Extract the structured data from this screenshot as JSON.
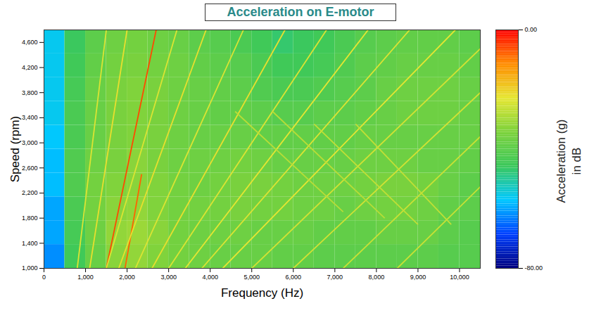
{
  "chart_data": {
    "type": "heatmap",
    "title": "Acceleration on E-motor",
    "x_label": "Frequency (Hz)",
    "y_label": "Speed (rpm)",
    "xlim": [
      0,
      10500
    ],
    "xticks": [
      0,
      1000,
      2000,
      3000,
      4000,
      5000,
      6000,
      7000,
      8000,
      9000,
      10000
    ],
    "ylim": [
      1000,
      4800
    ],
    "yticks": [
      1000,
      1400,
      1800,
      2200,
      2600,
      3000,
      3400,
      3800,
      4200,
      4600
    ],
    "x_bins": [
      0,
      500,
      1000,
      1500,
      2000,
      2500,
      3000,
      3500,
      4000,
      4500,
      5000,
      5500,
      6000,
      6500,
      7000,
      7500,
      8000,
      8500,
      9000,
      9500,
      10000,
      10500
    ],
    "y_bins": [
      1000,
      1380,
      1760,
      2140,
      2520,
      2900,
      3280,
      3660,
      4040,
      4420,
      4800
    ],
    "cells": [
      [
        -62,
        -45,
        -38,
        -33,
        -32,
        -34,
        -36,
        -37,
        -38,
        -38,
        -38,
        -39,
        -39,
        -40,
        -40,
        -40,
        -40,
        -40,
        -40,
        -41,
        -41
      ],
      [
        -60,
        -44,
        -37,
        -32,
        -31,
        -33,
        -36,
        -37,
        -37,
        -37,
        -38,
        -38,
        -38,
        -39,
        -39,
        -39,
        -38,
        -38,
        -38,
        -40,
        -41
      ],
      [
        -60,
        -43,
        -36,
        -33,
        -32,
        -34,
        -36,
        -36,
        -36,
        -35,
        -36,
        -36,
        -37,
        -37,
        -38,
        -37,
        -36,
        -36,
        -37,
        -39,
        -40
      ],
      [
        -58,
        -42,
        -36,
        -34,
        -33,
        -34,
        -36,
        -37,
        -36,
        -35,
        -35,
        -36,
        -37,
        -37,
        -37,
        -36,
        -35,
        -35,
        -36,
        -38,
        -40
      ],
      [
        -58,
        -42,
        -37,
        -35,
        -33,
        -35,
        -37,
        -37,
        -37,
        -36,
        -37,
        -38,
        -38,
        -38,
        -38,
        -37,
        -37,
        -37,
        -38,
        -38,
        -39
      ],
      [
        -57,
        -43,
        -38,
        -35,
        -34,
        -35,
        -37,
        -38,
        -38,
        -38,
        -39,
        -39,
        -39,
        -39,
        -39,
        -38,
        -38,
        -38,
        -38,
        -38,
        -38
      ],
      [
        -56,
        -43,
        -38,
        -35,
        -34,
        -35,
        -37,
        -38,
        -39,
        -39,
        -40,
        -41,
        -41,
        -40,
        -40,
        -39,
        -38,
        -37,
        -37,
        -37,
        -38
      ],
      [
        -56,
        -44,
        -38,
        -35,
        -34,
        -35,
        -37,
        -38,
        -39,
        -40,
        -42,
        -43,
        -43,
        -42,
        -41,
        -40,
        -38,
        -37,
        -37,
        -37,
        -38
      ],
      [
        -56,
        -45,
        -39,
        -36,
        -35,
        -36,
        -37,
        -39,
        -40,
        -41,
        -43,
        -45,
        -45,
        -44,
        -42,
        -40,
        -39,
        -38,
        -38,
        -38,
        -39
      ],
      [
        -56,
        -46,
        -40,
        -37,
        -36,
        -37,
        -38,
        -40,
        -41,
        -43,
        -45,
        -47,
        -46,
        -45,
        -43,
        -41,
        -40,
        -39,
        -39,
        -39,
        -40
      ]
    ],
    "lines": [
      {
        "x": [
          1500,
          2700
        ],
        "y": [
          1000,
          4800
        ],
        "level": -6
      },
      {
        "x": [
          1950,
          2350
        ],
        "y": [
          1000,
          2500
        ],
        "level": -8
      },
      {
        "x": [
          800,
          1500
        ],
        "y": [
          1000,
          4800
        ],
        "level": -24
      },
      {
        "x": [
          1100,
          2000
        ],
        "y": [
          1000,
          4800
        ],
        "level": -22
      },
      {
        "x": [
          1500,
          3200
        ],
        "y": [
          1000,
          4800
        ],
        "level": -24
      },
      {
        "x": [
          1800,
          3900
        ],
        "y": [
          1000,
          4800
        ],
        "level": -22
      },
      {
        "x": [
          2200,
          4800
        ],
        "y": [
          1000,
          4800
        ],
        "level": -24
      },
      {
        "x": [
          2600,
          5800
        ],
        "y": [
          1000,
          4800
        ],
        "level": -22
      },
      {
        "x": [
          3000,
          6800
        ],
        "y": [
          1000,
          4800
        ],
        "level": -24
      },
      {
        "x": [
          3400,
          7800
        ],
        "y": [
          1000,
          4800
        ],
        "level": -23
      },
      {
        "x": [
          3800,
          8800
        ],
        "y": [
          1000,
          4800
        ],
        "level": -24
      },
      {
        "x": [
          4300,
          9900
        ],
        "y": [
          1000,
          4800
        ],
        "level": -23
      },
      {
        "x": [
          5000,
          10500
        ],
        "y": [
          1000,
          4500
        ],
        "level": -25
      },
      {
        "x": [
          6000,
          10500
        ],
        "y": [
          1000,
          3800
        ],
        "level": -25
      },
      {
        "x": [
          7200,
          10500
        ],
        "y": [
          1000,
          3100
        ],
        "level": -26
      },
      {
        "x": [
          8500,
          10500
        ],
        "y": [
          1000,
          2300
        ],
        "level": -26
      },
      {
        "x": [
          9000,
          6500
        ],
        "y": [
          1700,
          3300
        ],
        "level": -27
      },
      {
        "x": [
          9800,
          7500
        ],
        "y": [
          1700,
          3300
        ],
        "level": -27
      },
      {
        "x": [
          8200,
          5500
        ],
        "y": [
          1800,
          3500
        ],
        "level": -28
      },
      {
        "x": [
          7200,
          4600
        ],
        "y": [
          1900,
          3500
        ],
        "level": -28
      }
    ],
    "colorbar_range": [
      -80,
      0
    ],
    "colorbar_ticks": [
      {
        "value": 0,
        "label": "0.00"
      },
      {
        "value": -80,
        "label": "-80.00"
      }
    ],
    "colorbar_label": [
      "Acceleration (g)",
      "in dB"
    ]
  }
}
